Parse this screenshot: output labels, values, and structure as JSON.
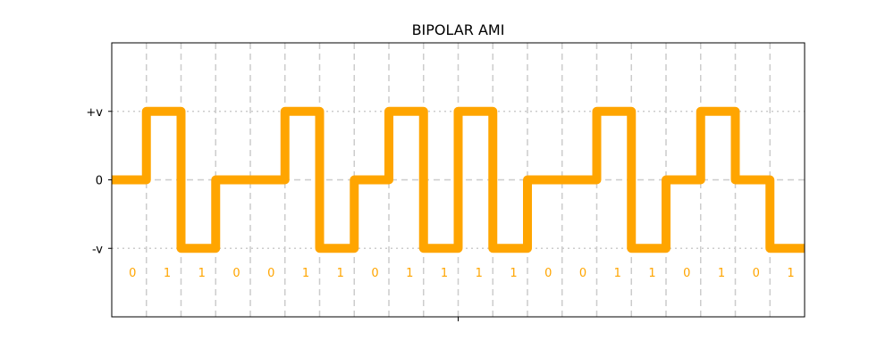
{
  "chart_data": {
    "type": "line",
    "step": true,
    "title": "BIPOLAR AMI",
    "xlabel": "",
    "ylabel": "",
    "bits": [
      "0",
      "1",
      "1",
      "0",
      "0",
      "1",
      "1",
      "0",
      "1",
      "1",
      "1",
      "1",
      "0",
      "0",
      "1",
      "1",
      "0",
      "1",
      "0",
      "1"
    ],
    "values": [
      0,
      1,
      -1,
      0,
      0,
      1,
      -1,
      0,
      1,
      -1,
      1,
      -1,
      0,
      0,
      1,
      -1,
      0,
      1,
      0,
      -1
    ],
    "xlim": [
      0,
      20
    ],
    "ylim": [
      -2,
      2
    ],
    "yticks": [
      {
        "value": 1,
        "label": "+v"
      },
      {
        "value": 0,
        "label": "0"
      },
      {
        "value": -1,
        "label": "-v"
      }
    ],
    "grid": true,
    "colors": {
      "signal": "#ffa500",
      "bit_label": "#ffa500",
      "grid": "#cccccc",
      "axes": "#000000"
    }
  }
}
